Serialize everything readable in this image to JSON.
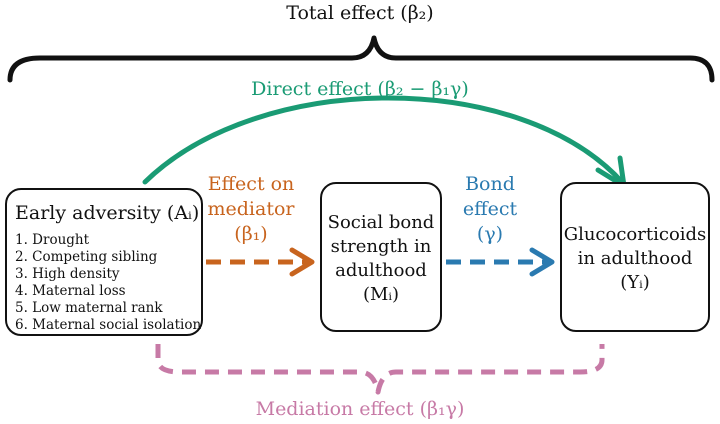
{
  "labels": {
    "total": "Total effect (β₂)",
    "direct": "Direct effect (β₂ − β₁γ)",
    "mediator_effect": [
      "Effect on",
      "mediator",
      "(β₁)"
    ],
    "bond_effect": [
      "Bond",
      "effect",
      "(γ)"
    ],
    "mediation": "Mediation effect (β₁γ)"
  },
  "boxes": {
    "adversity": {
      "title": "Early adversity (Aᵢ)",
      "items": [
        "1. Drought",
        "2. Competing sibling",
        "3. High density",
        "4. Maternal loss",
        "5. Low maternal rank",
        "6. Maternal social isolation"
      ]
    },
    "mediator": {
      "lines": [
        "Social bond",
        "strength in",
        "adulthood",
        "(Mᵢ)"
      ]
    },
    "outcome": {
      "lines": [
        "Glucocorticoids",
        "in adulthood",
        "(Yᵢ)"
      ]
    }
  },
  "colors": {
    "direct": "#1a9b74",
    "mediator_effect": "#c8641e",
    "bond_effect": "#2a7ab0",
    "mediation": "#c77aa6",
    "total": "#111111"
  }
}
